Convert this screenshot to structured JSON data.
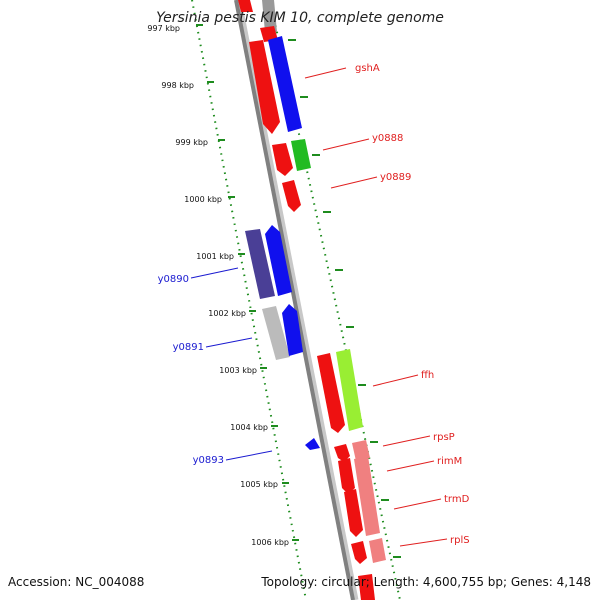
{
  "title": "Yersinia pestis KIM 10, complete genome",
  "footer": {
    "accession": "Accession: NC_004088",
    "topology": "Topology: circular; Length: 4,600,755 bp; Genes: 4,148"
  },
  "ticks": [
    "997 kbp",
    "998 kbp",
    "999 kbp",
    "1000 kbp",
    "1001 kbp",
    "1002 kbp",
    "1003 kbp",
    "1004 kbp",
    "1005 kbp",
    "1006 kbp"
  ],
  "genes": [
    {
      "name": "gshA",
      "color": "#e02020"
    },
    {
      "name": "y0888",
      "color": "#e02020"
    },
    {
      "name": "y0889",
      "color": "#e02020"
    },
    {
      "name": "y0890",
      "color": "#1a1ad0"
    },
    {
      "name": "y0891",
      "color": "#1a1ad0"
    },
    {
      "name": "ffh",
      "color": "#e02020"
    },
    {
      "name": "rpsP",
      "color": "#e02020"
    },
    {
      "name": "rimM",
      "color": "#e02020"
    },
    {
      "name": "y0893",
      "color": "#1a1ad0"
    },
    {
      "name": "trmD",
      "color": "#e02020"
    },
    {
      "name": "rplS",
      "color": "#e02020"
    }
  ]
}
